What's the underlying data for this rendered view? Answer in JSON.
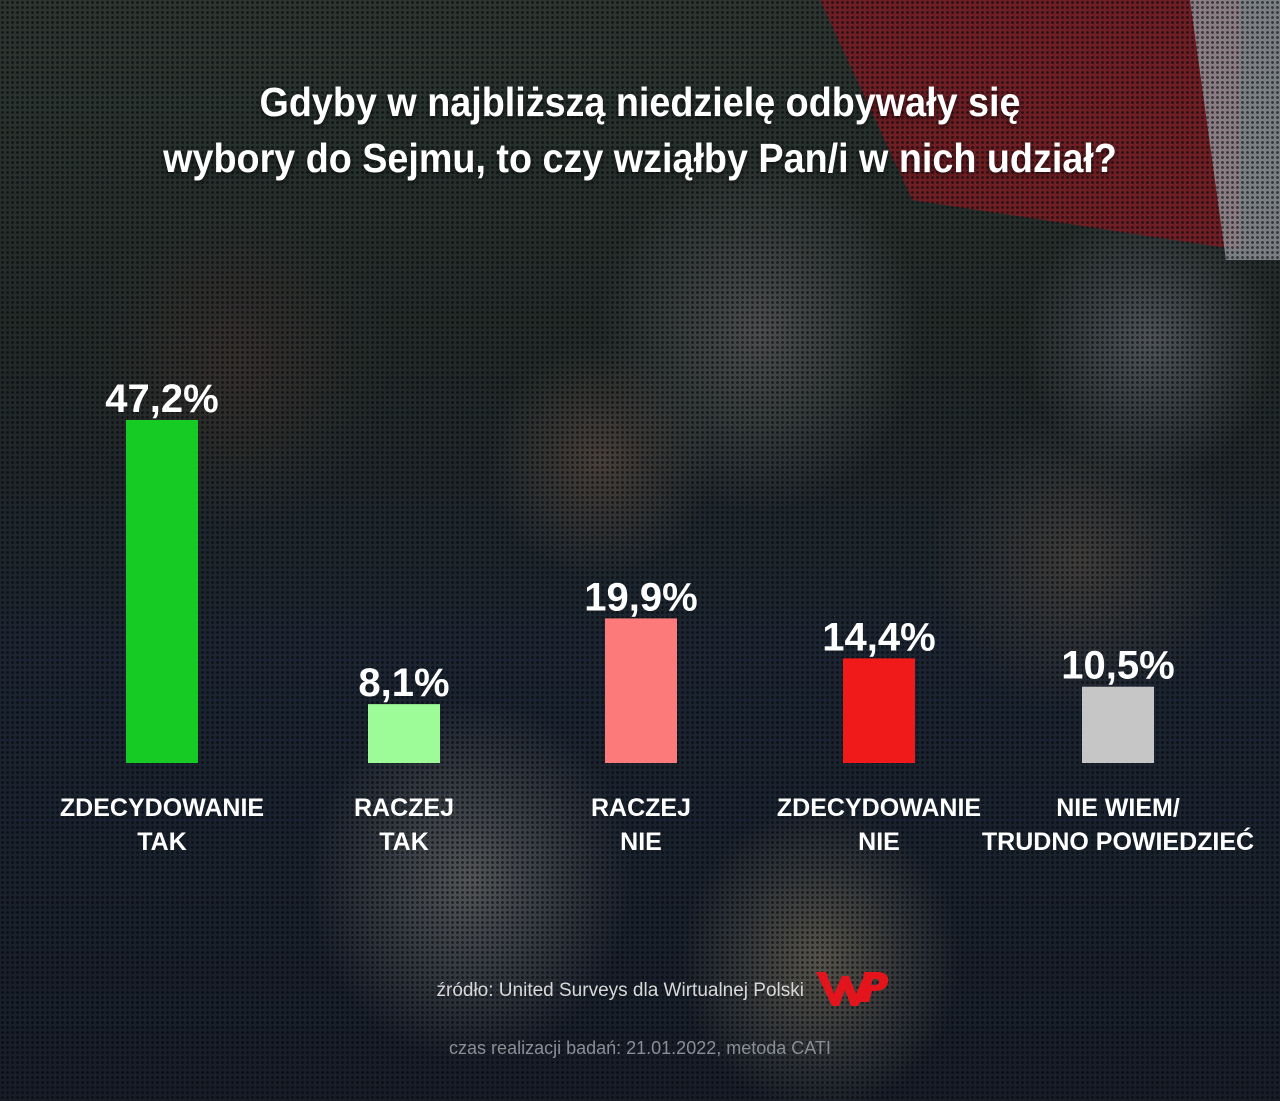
{
  "title_lines": [
    "Gdyby w najbliższą niedzielę odbywały się",
    "wybory do Sejmu, to czy wziąłby Pan/i w nich udział?"
  ],
  "chart_data": {
    "type": "bar",
    "title": "Gdyby w najbliższą niedzielę odbywały się wybory do Sejmu, to czy wziąłby Pan/i w nich udział?",
    "categories": [
      [
        "ZDECYDOWANIE",
        "TAK"
      ],
      [
        "RACZEJ",
        "TAK"
      ],
      [
        "RACZEJ",
        "NIE"
      ],
      [
        "ZDECYDOWANIE",
        "NIE"
      ],
      [
        "NIE WIEM/",
        "TRUDNO POWIEDZIEĆ"
      ]
    ],
    "values": [
      47.2,
      8.1,
      19.9,
      14.4,
      10.5
    ],
    "value_labels": [
      "47,2%",
      "8,1%",
      "19,9%",
      "14,4%",
      "10,5%"
    ],
    "colors": [
      "#16cc24",
      "#9efc98",
      "#fc7a7a",
      "#f01a1a",
      "#c6c6c6"
    ],
    "unit": "%",
    "ylim": [
      0,
      47.2
    ],
    "grid": false,
    "legend": "none"
  },
  "footer": {
    "source": "źródło: United Surveys dla Wirtualnej Polski",
    "date_note": "czas realizacji badań: 21.01.2022, metoda CATI",
    "logo_text": "WP",
    "logo_color": "#e3141c"
  }
}
